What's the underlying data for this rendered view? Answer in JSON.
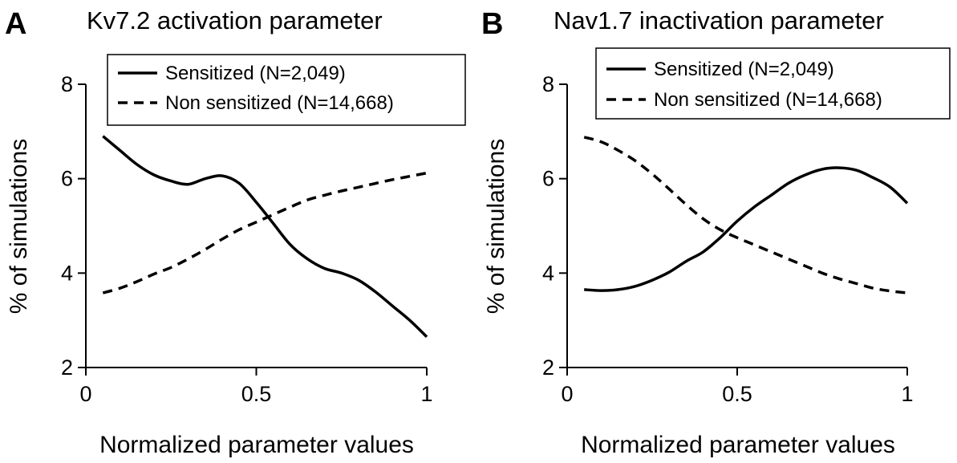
{
  "chart_data": [
    {
      "type": "line",
      "panel_letter": "A",
      "title": "Kv7.2 activation parameter",
      "xlabel": "Normalized parameter values",
      "ylabel": "% of simulations",
      "xlim": [
        0,
        1
      ],
      "ylim": [
        2,
        8
      ],
      "xticks": [
        0,
        0.5,
        1
      ],
      "xtick_labels": [
        "0",
        "0.5",
        "1"
      ],
      "yticks": [
        2,
        4,
        6,
        8
      ],
      "ytick_labels": [
        "2",
        "4",
        "6",
        "8"
      ],
      "legend_position": "top-right",
      "series": [
        {
          "name": "Sensitized (N=2,049)",
          "style": "solid",
          "x": [
            0.05,
            0.1,
            0.15,
            0.2,
            0.25,
            0.3,
            0.35,
            0.4,
            0.45,
            0.5,
            0.55,
            0.6,
            0.65,
            0.7,
            0.75,
            0.8,
            0.85,
            0.9,
            0.95,
            1.0
          ],
          "y": [
            6.9,
            6.6,
            6.3,
            6.08,
            5.95,
            5.88,
            6.0,
            6.06,
            5.9,
            5.5,
            5.05,
            4.6,
            4.3,
            4.1,
            4.0,
            3.85,
            3.6,
            3.3,
            3.0,
            2.65
          ]
        },
        {
          "name": "Non sensitized (N=14,668)",
          "style": "dashed",
          "x": [
            0.05,
            0.1,
            0.15,
            0.2,
            0.25,
            0.3,
            0.35,
            0.4,
            0.45,
            0.5,
            0.55,
            0.6,
            0.65,
            0.7,
            0.75,
            0.8,
            0.85,
            0.9,
            0.95,
            1.0
          ],
          "y": [
            3.58,
            3.68,
            3.82,
            3.98,
            4.12,
            4.3,
            4.5,
            4.72,
            4.92,
            5.08,
            5.24,
            5.4,
            5.55,
            5.65,
            5.74,
            5.82,
            5.9,
            5.98,
            6.05,
            6.12
          ]
        }
      ]
    },
    {
      "type": "line",
      "panel_letter": "B",
      "title": "Nav1.7 inactivation parameter",
      "xlabel": "Normalized parameter values",
      "ylabel": "% of simulations",
      "xlim": [
        0,
        1
      ],
      "ylim": [
        2,
        8
      ],
      "xticks": [
        0,
        0.5,
        1
      ],
      "xtick_labels": [
        "0",
        "0.5",
        "1"
      ],
      "yticks": [
        2,
        4,
        6,
        8
      ],
      "ytick_labels": [
        "2",
        "4",
        "6",
        "8"
      ],
      "legend_position": "top-right",
      "series": [
        {
          "name": "Sensitized (N=2,049)",
          "style": "solid",
          "x": [
            0.05,
            0.1,
            0.15,
            0.2,
            0.25,
            0.3,
            0.35,
            0.4,
            0.45,
            0.5,
            0.55,
            0.6,
            0.65,
            0.7,
            0.75,
            0.8,
            0.85,
            0.9,
            0.95,
            1.0
          ],
          "y": [
            3.65,
            3.63,
            3.65,
            3.72,
            3.85,
            4.02,
            4.25,
            4.45,
            4.75,
            5.1,
            5.4,
            5.65,
            5.9,
            6.08,
            6.2,
            6.23,
            6.18,
            6.02,
            5.82,
            5.48
          ]
        },
        {
          "name": "Non sensitized (N=14,668)",
          "style": "dashed",
          "x": [
            0.05,
            0.1,
            0.15,
            0.2,
            0.25,
            0.3,
            0.35,
            0.4,
            0.45,
            0.5,
            0.55,
            0.6,
            0.65,
            0.7,
            0.75,
            0.8,
            0.85,
            0.9,
            0.95,
            1.0
          ],
          "y": [
            6.88,
            6.78,
            6.6,
            6.38,
            6.1,
            5.78,
            5.45,
            5.15,
            4.92,
            4.75,
            4.6,
            4.45,
            4.3,
            4.15,
            4.0,
            3.88,
            3.78,
            3.68,
            3.62,
            3.58
          ]
        }
      ]
    }
  ]
}
